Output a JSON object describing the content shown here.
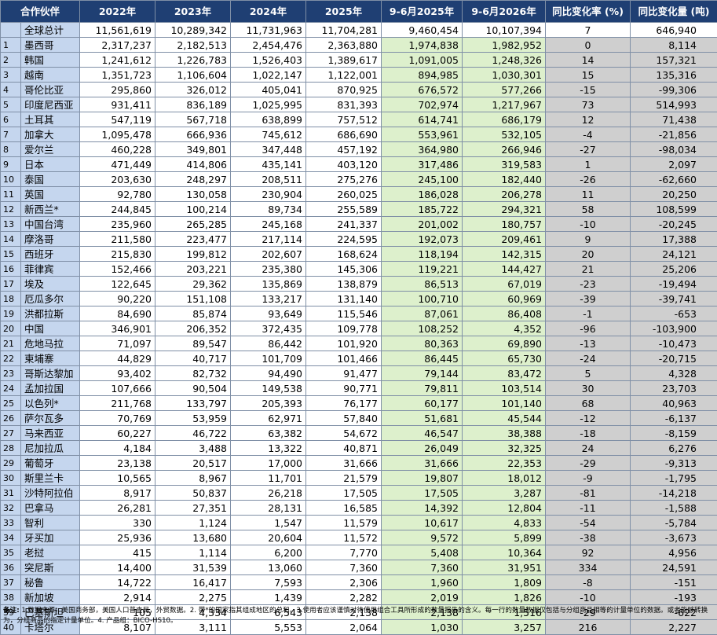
{
  "headers": [
    "合作伙伴",
    "2022年",
    "2023年",
    "2024年",
    "2025年",
    "9-6月2025年",
    "9-6月2026年",
    "同比变化率 (%)",
    "同比变化量 (吨)"
  ],
  "total": {
    "partner": "全球总计",
    "values": [
      "11,561,619",
      "10,289,342",
      "11,731,963",
      "11,704,281",
      "9,460,454",
      "10,107,394",
      "7",
      "646,940"
    ]
  },
  "rows": [
    {
      "rank": "1",
      "partner": "墨西哥",
      "values": [
        "2,317,237",
        "2,182,513",
        "2,454,476",
        "2,363,880",
        "1,974,838",
        "1,982,952",
        "0",
        "8,114"
      ]
    },
    {
      "rank": "2",
      "partner": "韩国",
      "values": [
        "1,241,612",
        "1,226,783",
        "1,526,403",
        "1,389,617",
        "1,091,005",
        "1,248,326",
        "14",
        "157,321"
      ]
    },
    {
      "rank": "3",
      "partner": "越南",
      "values": [
        "1,351,723",
        "1,106,604",
        "1,022,147",
        "1,122,001",
        "894,985",
        "1,030,301",
        "15",
        "135,316"
      ]
    },
    {
      "rank": "4",
      "partner": "哥伦比亚",
      "values": [
        "295,860",
        "326,012",
        "405,041",
        "870,925",
        "676,572",
        "577,266",
        "-15",
        "-99,306"
      ]
    },
    {
      "rank": "5",
      "partner": "印度尼西亚",
      "values": [
        "931,411",
        "836,189",
        "1,025,995",
        "831,393",
        "702,974",
        "1,217,967",
        "73",
        "514,993"
      ]
    },
    {
      "rank": "6",
      "partner": "土耳其",
      "values": [
        "547,119",
        "567,718",
        "638,899",
        "757,512",
        "614,741",
        "686,179",
        "12",
        "71,438"
      ]
    },
    {
      "rank": "7",
      "partner": "加拿大",
      "values": [
        "1,095,478",
        "666,936",
        "745,612",
        "686,690",
        "553,961",
        "532,105",
        "-4",
        "-21,856"
      ]
    },
    {
      "rank": "8",
      "partner": "爱尔兰",
      "values": [
        "460,228",
        "349,801",
        "347,448",
        "457,192",
        "364,980",
        "266,946",
        "-27",
        "-98,034"
      ]
    },
    {
      "rank": "9",
      "partner": "日本",
      "values": [
        "471,449",
        "414,806",
        "435,141",
        "403,120",
        "317,486",
        "319,583",
        "1",
        "2,097"
      ]
    },
    {
      "rank": "10",
      "partner": "泰国",
      "values": [
        "203,630",
        "248,297",
        "208,511",
        "275,276",
        "245,100",
        "182,440",
        "-26",
        "-62,660"
      ]
    },
    {
      "rank": "11",
      "partner": "英国",
      "values": [
        "92,780",
        "130,058",
        "230,904",
        "260,025",
        "186,028",
        "206,278",
        "11",
        "20,250"
      ]
    },
    {
      "rank": "12",
      "partner": "新西兰*",
      "values": [
        "244,845",
        "100,214",
        "89,734",
        "255,589",
        "185,722",
        "294,321",
        "58",
        "108,599"
      ]
    },
    {
      "rank": "13",
      "partner": "中国台湾",
      "values": [
        "235,960",
        "265,285",
        "245,168",
        "241,337",
        "201,002",
        "180,757",
        "-10",
        "-20,245"
      ]
    },
    {
      "rank": "14",
      "partner": "摩洛哥",
      "values": [
        "211,580",
        "223,477",
        "217,114",
        "224,595",
        "192,073",
        "209,461",
        "9",
        "17,388"
      ]
    },
    {
      "rank": "15",
      "partner": "西班牙",
      "values": [
        "215,830",
        "199,812",
        "202,607",
        "168,624",
        "118,194",
        "142,315",
        "20",
        "24,121"
      ]
    },
    {
      "rank": "16",
      "partner": "菲律宾",
      "values": [
        "152,466",
        "203,221",
        "235,380",
        "145,306",
        "119,221",
        "144,427",
        "21",
        "25,206"
      ]
    },
    {
      "rank": "17",
      "partner": "埃及",
      "values": [
        "122,645",
        "29,362",
        "135,869",
        "138,879",
        "86,513",
        "67,019",
        "-23",
        "-19,494"
      ]
    },
    {
      "rank": "18",
      "partner": "厄瓜多尔",
      "values": [
        "90,220",
        "151,108",
        "133,217",
        "131,140",
        "100,710",
        "60,969",
        "-39",
        "-39,741"
      ]
    },
    {
      "rank": "19",
      "partner": "洪都拉斯",
      "values": [
        "84,690",
        "85,874",
        "93,649",
        "115,546",
        "87,061",
        "86,408",
        "-1",
        "-653"
      ]
    },
    {
      "rank": "20",
      "partner": "中国",
      "values": [
        "346,901",
        "206,352",
        "372,435",
        "109,778",
        "108,252",
        "4,352",
        "-96",
        "-103,900"
      ]
    },
    {
      "rank": "21",
      "partner": "危地马拉",
      "values": [
        "71,097",
        "89,547",
        "86,442",
        "101,920",
        "80,363",
        "69,890",
        "-13",
        "-10,473"
      ]
    },
    {
      "rank": "22",
      "partner": "柬埔寨",
      "values": [
        "44,829",
        "40,717",
        "101,709",
        "101,466",
        "86,445",
        "65,730",
        "-24",
        "-20,715"
      ]
    },
    {
      "rank": "23",
      "partner": "哥斯达黎加",
      "values": [
        "93,402",
        "82,732",
        "94,490",
        "91,477",
        "79,144",
        "83,472",
        "5",
        "4,328"
      ]
    },
    {
      "rank": "24",
      "partner": "孟加拉国",
      "values": [
        "107,666",
        "90,504",
        "149,538",
        "90,771",
        "79,811",
        "103,514",
        "30",
        "23,703"
      ]
    },
    {
      "rank": "25",
      "partner": "以色列*",
      "values": [
        "211,768",
        "133,797",
        "205,393",
        "76,177",
        "60,177",
        "101,140",
        "68",
        "40,963"
      ]
    },
    {
      "rank": "26",
      "partner": "萨尔瓦多",
      "values": [
        "70,769",
        "53,959",
        "62,971",
        "57,840",
        "51,681",
        "45,544",
        "-12",
        "-6,137"
      ]
    },
    {
      "rank": "27",
      "partner": "马来西亚",
      "values": [
        "60,227",
        "46,722",
        "63,382",
        "54,672",
        "46,547",
        "38,388",
        "-18",
        "-8,159"
      ]
    },
    {
      "rank": "28",
      "partner": "尼加拉瓜",
      "values": [
        "4,184",
        "3,488",
        "13,322",
        "40,871",
        "26,049",
        "32,325",
        "24",
        "6,276"
      ]
    },
    {
      "rank": "29",
      "partner": "葡萄牙",
      "values": [
        "23,138",
        "20,517",
        "17,000",
        "31,666",
        "31,666",
        "22,353",
        "-29",
        "-9,313"
      ]
    },
    {
      "rank": "30",
      "partner": "斯里兰卡",
      "values": [
        "10,565",
        "8,967",
        "11,701",
        "21,579",
        "19,807",
        "18,012",
        "-9",
        "-1,795"
      ]
    },
    {
      "rank": "31",
      "partner": "沙特阿拉伯",
      "values": [
        "8,917",
        "50,837",
        "26,218",
        "17,505",
        "17,505",
        "3,287",
        "-81",
        "-14,218"
      ]
    },
    {
      "rank": "32",
      "partner": "巴拿马",
      "values": [
        "26,281",
        "27,351",
        "28,131",
        "16,585",
        "14,392",
        "12,804",
        "-11",
        "-1,588"
      ]
    },
    {
      "rank": "33",
      "partner": "智利",
      "values": [
        "330",
        "1,124",
        "1,547",
        "11,579",
        "10,617",
        "4,833",
        "-54",
        "-5,784"
      ]
    },
    {
      "rank": "34",
      "partner": "牙买加",
      "values": [
        "25,936",
        "13,680",
        "20,604",
        "11,572",
        "9,572",
        "5,899",
        "-38",
        "-3,673"
      ]
    },
    {
      "rank": "35",
      "partner": "老挝",
      "values": [
        "415",
        "1,114",
        "6,200",
        "7,770",
        "5,408",
        "10,364",
        "92",
        "4,956"
      ]
    },
    {
      "rank": "36",
      "partner": "突尼斯",
      "values": [
        "14,400",
        "31,539",
        "13,060",
        "7,360",
        "7,360",
        "31,951",
        "334",
        "24,591"
      ]
    },
    {
      "rank": "37",
      "partner": "秘鲁",
      "values": [
        "14,722",
        "16,417",
        "7,593",
        "2,306",
        "1,960",
        "1,809",
        "-8",
        "-151"
      ]
    },
    {
      "rank": "38",
      "partner": "新加坡",
      "values": [
        "2,914",
        "2,275",
        "1,439",
        "2,282",
        "2,019",
        "1,826",
        "-10",
        "-193"
      ]
    },
    {
      "rank": "39",
      "partner": "巴基斯坦",
      "values": [
        "105",
        "4,334",
        "6,543",
        "2,138",
        "2,138",
        "1,516",
        "-29",
        "-622"
      ]
    },
    {
      "rank": "40",
      "partner": "卡塔尔",
      "values": [
        "8,107",
        "3,111",
        "5,553",
        "2,064",
        "1,030",
        "3,257",
        "216",
        "2,227"
      ]
    }
  ],
  "note": {
    "label": "备注:",
    "text": "1.数据来源：美国商务部，美国人口普查局，外贸数据。2. 带*的国家指其组成地区的总和。3.使用者应该谨慎对待使用组合工具所形成的数量报告的含义。每一行的数量数据仅包括与分组商品相等的计量单位的数据。或者能够转换为，分组商品的指定计量单位。4. 产品组：BICO-HS10。"
  }
}
